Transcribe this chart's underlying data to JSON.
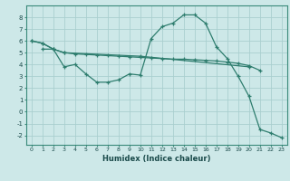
{
  "xlabel": "Humidex (Indice chaleur)",
  "bg_color": "#cde8e8",
  "grid_color": "#aacfcf",
  "line_color": "#2e7d6e",
  "xlim": [
    -0.5,
    23.5
  ],
  "ylim": [
    -2.8,
    9.0
  ],
  "yticks": [
    -2,
    -1,
    0,
    1,
    2,
    3,
    4,
    5,
    6,
    7,
    8
  ],
  "xticks": [
    0,
    1,
    2,
    3,
    4,
    5,
    6,
    7,
    8,
    9,
    10,
    11,
    12,
    13,
    14,
    15,
    16,
    17,
    18,
    19,
    20,
    21,
    22,
    23
  ],
  "line1_x": [
    0,
    1,
    2,
    3,
    10,
    20
  ],
  "line1_y": [
    6.0,
    5.8,
    5.3,
    5.0,
    4.7,
    3.8
  ],
  "line2_x": [
    0,
    1,
    2,
    3,
    4,
    5,
    6,
    7,
    8,
    9,
    10,
    11,
    12,
    13,
    14,
    15,
    16,
    17,
    18,
    19,
    20,
    21
  ],
  "line2_y": [
    6.0,
    5.8,
    5.3,
    5.0,
    4.9,
    4.85,
    4.8,
    4.75,
    4.7,
    4.65,
    4.6,
    4.55,
    4.5,
    4.45,
    4.45,
    4.4,
    4.35,
    4.3,
    4.2,
    4.1,
    3.9,
    3.5
  ],
  "line3_x": [
    1,
    2,
    3,
    4,
    5,
    6,
    7,
    8,
    9,
    10,
    11,
    12,
    13,
    14,
    15,
    16,
    17,
    18,
    19,
    20,
    21,
    22,
    23
  ],
  "line3_y": [
    5.3,
    5.3,
    3.8,
    4.0,
    3.2,
    2.5,
    2.5,
    2.7,
    3.2,
    3.1,
    6.2,
    7.2,
    7.5,
    8.2,
    8.2,
    7.5,
    5.5,
    4.5,
    3.0,
    1.3,
    -1.5,
    -1.8,
    -2.2
  ]
}
